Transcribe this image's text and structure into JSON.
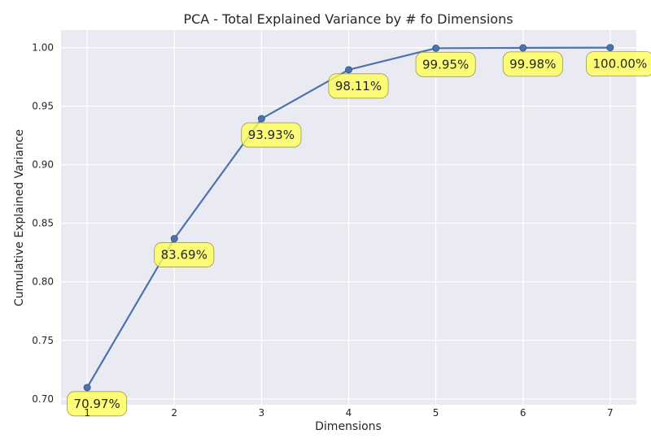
{
  "chart_data": {
    "type": "line",
    "title": "PCA - Total Explained Variance by # fo Dimensions",
    "xlabel": "Dimensions",
    "ylabel": "Cumulative Explained Variance",
    "x": [
      1,
      2,
      3,
      4,
      5,
      6,
      7
    ],
    "series": [
      {
        "values": [
          0.7097,
          0.8369,
          0.9393,
          0.9811,
          0.9995,
          0.9998,
          1.0
        ]
      }
    ],
    "annotations": [
      "70.97%",
      "83.69%",
      "93.93%",
      "98.11%",
      "99.95%",
      "99.98%",
      "100.00%"
    ],
    "x_ticks": [
      "1",
      "2",
      "3",
      "4",
      "5",
      "6",
      "7"
    ],
    "y_ticks": [
      0.7,
      0.75,
      0.8,
      0.85,
      0.9,
      0.95,
      1.0
    ],
    "y_tick_labels": [
      "0.70",
      "0.75",
      "0.80",
      "0.85",
      "0.90",
      "0.95",
      "1.00"
    ],
    "xlim": [
      0.7,
      7.3
    ],
    "ylim": [
      0.695,
      1.015
    ],
    "grid": true,
    "colors": {
      "line": "#4c72b0",
      "plot_background": "#eaeaf2",
      "grid": "#ffffff",
      "callout_fill": "#ffff55",
      "callout_border": "#9b9b50"
    }
  }
}
